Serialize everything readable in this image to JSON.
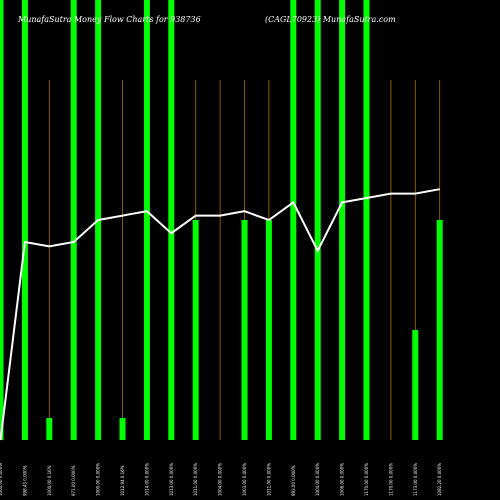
{
  "chart_data": {
    "type": "bar",
    "title_left": "MunafaSutra  Money  Flow  Charts for 938736",
    "title_right": "(CAGL70923)  MunafaSutra.com",
    "categories": [
      "1000.00 0.000%",
      "998.43 0.000%",
      "1000.00 0.16%",
      "971.00 0.000%",
      "1000.00 0.000%",
      "1012.94 0.16%",
      "1014.00 0.000%",
      "1013.00 0.000%",
      "1011.00 0.000%",
      "1004.00 0.000%",
      "1003.00 0.000%",
      "1011.00 0.000%",
      "993.00 0.000%",
      "1004.00 0.000%",
      "1006.00 0.000%",
      "1170.00 0.000%",
      "1170.00 0.000%",
      "1173.00 0.000%",
      "1082.20 0.000%"
    ],
    "ylim": [
      0,
      100
    ],
    "series": [
      {
        "type": "bar",
        "color": "#00ff00",
        "values": [
          100,
          100,
          5,
          100,
          100,
          5,
          100,
          100,
          50,
          0,
          50,
          50,
          100,
          100,
          100,
          100,
          0,
          25,
          50
        ]
      },
      {
        "type": "line",
        "color": "#ffffff",
        "values": [
          0,
          45,
          44,
          45,
          50,
          51,
          52,
          47,
          51,
          51,
          52,
          50,
          54,
          43,
          54,
          55,
          56,
          56,
          57
        ]
      }
    ],
    "wick_color": "#b36b00"
  }
}
